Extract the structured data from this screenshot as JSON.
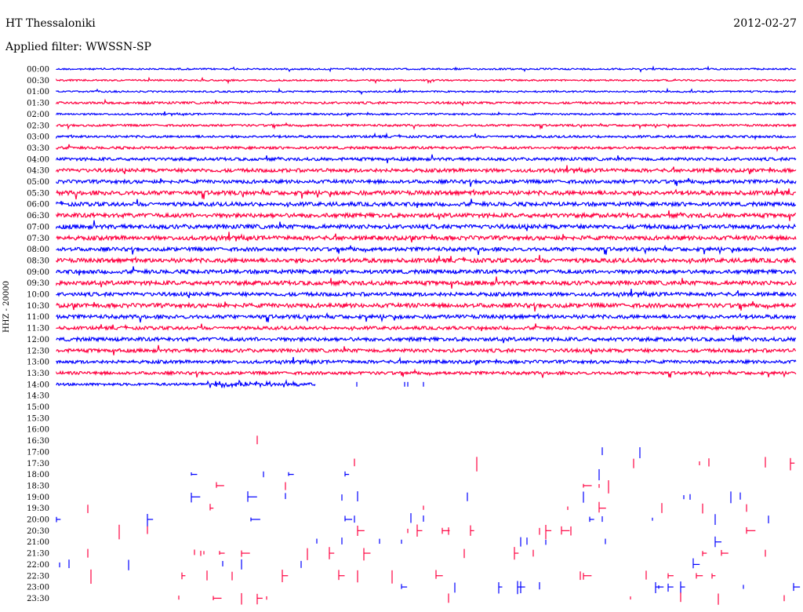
{
  "header": {
    "station": "HT Thessaloniki",
    "date": "2012-02-27",
    "filter": "Applied filter: WWSSN-SP"
  },
  "channel_label": "HHZ - 20000",
  "colors": {
    "even_line": "#0000ff",
    "odd_line": "#ff0040"
  },
  "chart_data": {
    "type": "line",
    "title": "HT Thessaloniki",
    "subtitle": "Applied filter: WWSSN-SP",
    "ylabel": "HHZ - 20000",
    "rows": [
      "00:00",
      "00:30",
      "01:00",
      "01:30",
      "02:00",
      "02:30",
      "03:00",
      "03:30",
      "04:00",
      "04:30",
      "05:00",
      "05:30",
      "06:00",
      "06:30",
      "07:00",
      "07:30",
      "08:00",
      "08:30",
      "09:00",
      "09:30",
      "10:00",
      "10:30",
      "11:00",
      "11:30",
      "12:00",
      "12:30",
      "13:00",
      "13:30",
      "14:00",
      "14:30",
      "15:00",
      "15:30",
      "16:00",
      "16:30",
      "17:00",
      "17:30",
      "18:00",
      "18:30",
      "19:00",
      "19:30",
      "20:00",
      "20:30",
      "21:00",
      "21:30",
      "22:00",
      "22:30",
      "23:00",
      "23:30"
    ],
    "continuous_rows": 28,
    "partial_row": "14:00",
    "partial_row_fraction": 0.35,
    "empty_rows": [
      "14:30",
      "15:00",
      "15:30",
      "16:00"
    ],
    "sparse_rows_from": "16:30",
    "noise_level": [
      1,
      1,
      1,
      1.4,
      1.1,
      1.3,
      1.4,
      1.6,
      1.9,
      2.2,
      2.2,
      2.6,
      2.4,
      2.6,
      2.6,
      2.6,
      2.3,
      2.6,
      2.4,
      2.6,
      2.3,
      2.6,
      2.3,
      2.0,
      2.3,
      2.2,
      2.0,
      1.9
    ],
    "grid": false,
    "legend": "none"
  }
}
